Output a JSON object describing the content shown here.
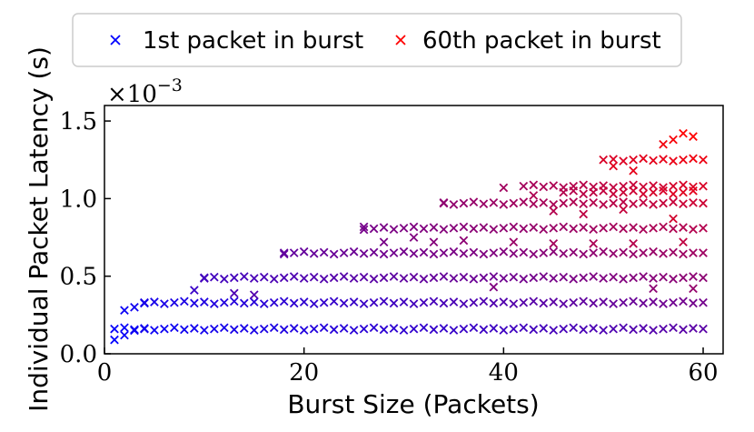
{
  "chart_data": {
    "type": "scatter",
    "xlabel": "Burst Size (Packets)",
    "ylabel": "Individual Packet Latency (s)",
    "y_multiplier_label": "×10",
    "y_multiplier_exponent": "−3",
    "xlim": [
      0,
      62
    ],
    "ylim": [
      0,
      1.6
    ],
    "xticks": [
      0,
      20,
      40,
      60
    ],
    "xtick_labels": [
      "0",
      "20",
      "40",
      "60"
    ],
    "yticks": [
      0,
      0.5,
      1.0,
      1.5
    ],
    "ytick_labels": [
      "0.0",
      "0.5",
      "1.0",
      "1.5"
    ],
    "grid": false,
    "legend_position": "top",
    "marker": "x",
    "series": [
      {
        "name": "1st packet in burst",
        "color": "#0000ff"
      },
      {
        "name": "60th packet in burst",
        "color": "#ff0000"
      }
    ],
    "gradient_colors": [
      "#0000ff",
      "#ff0000"
    ],
    "packet_slot_latency": [
      0.16,
      0.33,
      0.49,
      0.65,
      0.81,
      0.97,
      1.08,
      1.25,
      1.4
    ],
    "points": [
      [
        1,
        0.09,
        0.0
      ],
      [
        2,
        0.12,
        0.03
      ],
      [
        3,
        0.15,
        0.05
      ],
      [
        4,
        0.16,
        0.07
      ],
      [
        60,
        0.16,
        0.35
      ],
      [
        2,
        0.28,
        0.04
      ],
      [
        3,
        0.3,
        0.06
      ],
      [
        4,
        0.33,
        0.09
      ],
      [
        60,
        0.33,
        0.45
      ],
      [
        9,
        0.41,
        0.22
      ],
      [
        13,
        0.39,
        0.3
      ],
      [
        15,
        0.38,
        0.32
      ],
      [
        39,
        0.43,
        0.5
      ],
      [
        55,
        0.42,
        0.55
      ],
      [
        59,
        0.42,
        0.58
      ],
      [
        10,
        0.49,
        0.26
      ],
      [
        60,
        0.49,
        0.55
      ],
      [
        18,
        0.65,
        0.38
      ],
      [
        60,
        0.65,
        0.62
      ],
      [
        26,
        0.8,
        0.46
      ],
      [
        60,
        0.81,
        0.7
      ],
      [
        28,
        0.72,
        0.47
      ],
      [
        31,
        0.75,
        0.5
      ],
      [
        33,
        0.72,
        0.52
      ],
      [
        36,
        0.73,
        0.55
      ],
      [
        41,
        0.72,
        0.6
      ],
      [
        45,
        0.71,
        0.64
      ],
      [
        49,
        0.71,
        0.67
      ],
      [
        53,
        0.71,
        0.71
      ],
      [
        58,
        0.72,
        0.75
      ],
      [
        34,
        0.97,
        0.56
      ],
      [
        60,
        0.97,
        0.8
      ],
      [
        40,
        1.07,
        0.63
      ],
      [
        60,
        1.08,
        0.85
      ],
      [
        43,
        1.02,
        0.68
      ],
      [
        45,
        0.92,
        0.7
      ],
      [
        48,
        0.9,
        0.74
      ],
      [
        52,
        0.93,
        0.77
      ],
      [
        57,
        0.87,
        0.82
      ],
      [
        50,
        1.25,
        0.85
      ],
      [
        60,
        1.25,
        0.93
      ],
      [
        51,
        1.21,
        0.88
      ],
      [
        53,
        1.18,
        0.9
      ],
      [
        56,
        1.35,
        0.95
      ],
      [
        57,
        1.38,
        0.97
      ],
      [
        58,
        1.42,
        1.0
      ],
      [
        59,
        1.4,
        1.0
      ]
    ]
  }
}
